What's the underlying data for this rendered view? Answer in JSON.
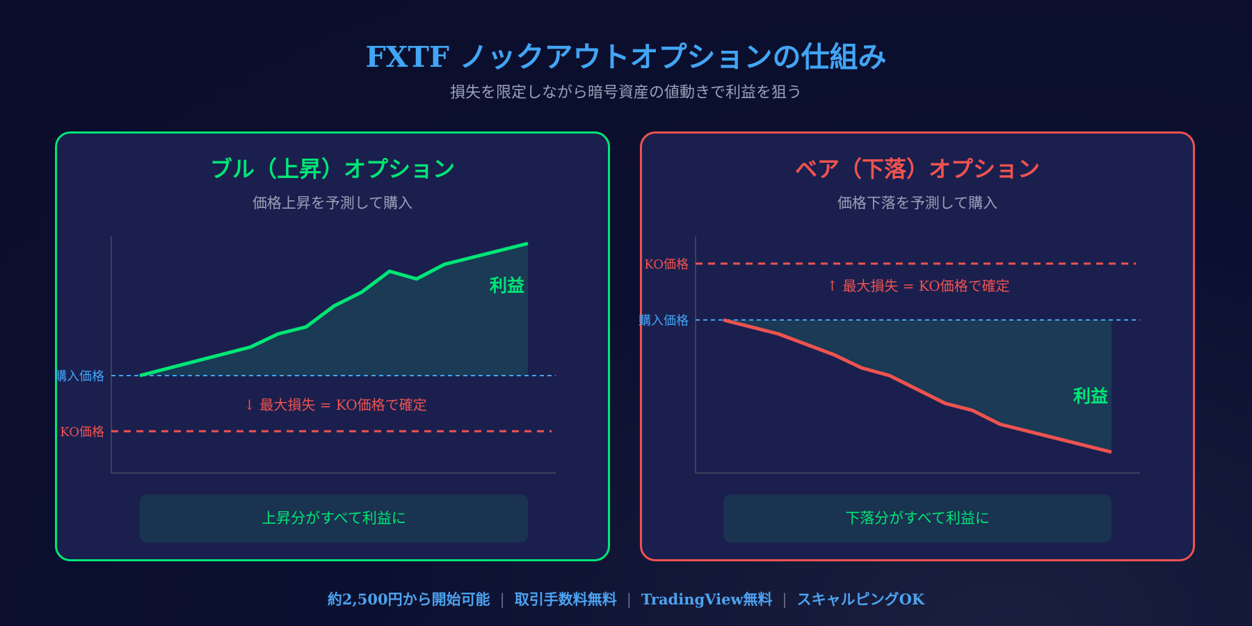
{
  "header": {
    "title": "FXTF ノックアウトオプションの仕組み",
    "subtitle": "損失を限定しながら暗号資産の値動きで利益を狙う"
  },
  "bull": {
    "title": "ブル（上昇）オプション",
    "subtitle": "価格上昇を予測して購入",
    "buy_label": "購入価格",
    "ko_label": "KO価格",
    "loss_note": "↓ 最大損失 = KO価格で確定",
    "profit_label": "利益",
    "summary": "上昇分がすべて利益に",
    "color": "#00e676"
  },
  "bear": {
    "title": "ベア（下落）オプション",
    "subtitle": "価格下落を予測して購入",
    "buy_label": "購入価格",
    "ko_label": "KO価格",
    "loss_note": "↑ 最大損失 = KO価格で確定",
    "profit_label": "利益",
    "summary": "下落分がすべて利益に",
    "color": "#ef5350"
  },
  "colors": {
    "background": "#0a0e2a",
    "card": "#1b1f4e",
    "bull": "#00e676",
    "bear": "#ef5350",
    "buy_line": "#42a5f5",
    "ko_line": "#ef5350",
    "profit_fill": "#1a3a55"
  },
  "footer": {
    "items": [
      "約2,500円から開始可能",
      "取引手数料無料",
      "TradingView無料",
      "スキャルピングOK"
    ]
  }
}
